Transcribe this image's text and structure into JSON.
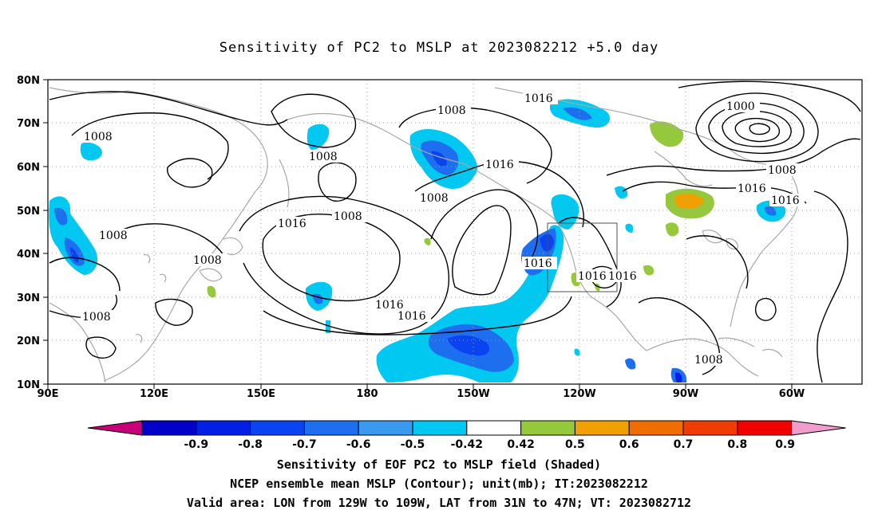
{
  "title": "Sensitivity of PC2 to MSLP at 2023082212 +5.0 day",
  "map": {
    "lat_ticks": [
      "80N",
      "70N",
      "60N",
      "50N",
      "40N",
      "30N",
      "20N",
      "10N"
    ],
    "lon_ticks": [
      "90E",
      "120E",
      "150E",
      "180",
      "150W",
      "120W",
      "90W",
      "60W"
    ],
    "contour_labels": [
      "1016",
      "1008",
      "1000",
      "1008",
      "1016",
      "1016",
      "1008",
      "1008",
      "1016",
      "1008",
      "1008",
      "1016",
      "1008",
      "1016",
      "1008",
      "1016",
      "1016",
      "1016",
      "1008",
      "1008",
      "1016",
      "1016",
      "1008"
    ],
    "valid_box": {
      "lon": [
        -129,
        -109
      ],
      "lat": [
        31,
        47
      ]
    },
    "colors": {
      "contour": "#000000",
      "coast": "#a8a8a8",
      "grid": "#a0a0a0",
      "box": "#505050"
    }
  },
  "colorbar": {
    "labels": [
      "-0.9",
      "-0.8",
      "-0.7",
      "-0.6",
      "-0.5",
      "-0.42",
      "0.42",
      "0.5",
      "0.6",
      "0.7",
      "0.8",
      "0.9"
    ],
    "colors": [
      "#c8007a",
      "#0000c8",
      "#0020e6",
      "#0a44f0",
      "#1e6ef0",
      "#3a9af0",
      "#00c8f0",
      "#ffffff",
      "#96c83c",
      "#f0a000",
      "#f06e00",
      "#f03c00",
      "#f00000",
      "#f09ccc"
    ]
  },
  "captions": {
    "line1": "Sensitivity of EOF PC2 to MSLP field (Shaded)",
    "line2": "NCEP ensemble mean MSLP (Contour); unit(mb); IT:2023082212",
    "line3": "Valid area: LON from 129W to 109W, LAT from 31N to 47N; VT: 2023082712"
  }
}
